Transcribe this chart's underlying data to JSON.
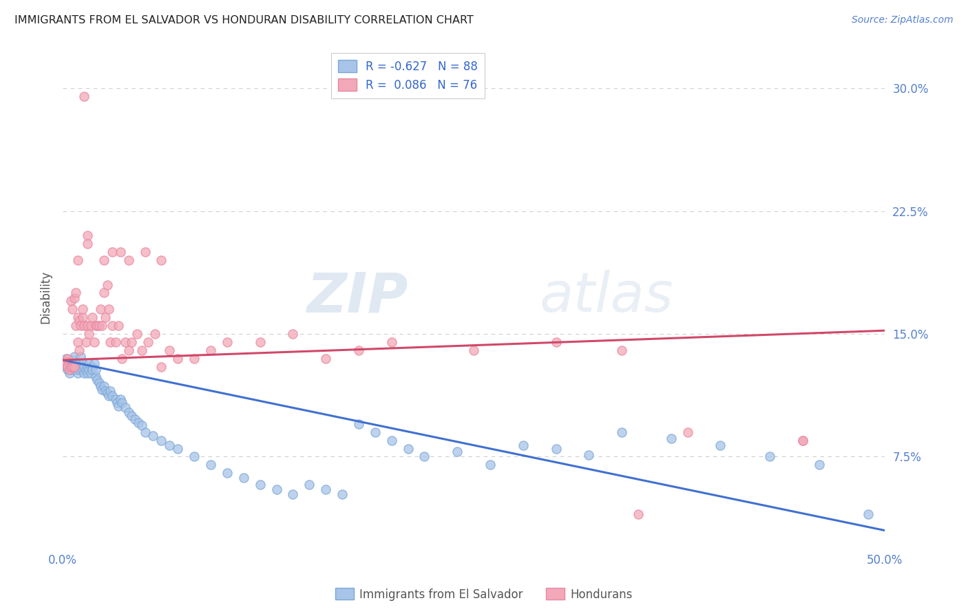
{
  "title": "IMMIGRANTS FROM EL SALVADOR VS HONDURAN DISABILITY CORRELATION CHART",
  "source": "Source: ZipAtlas.com",
  "ylabel_label": "Disability",
  "xlim": [
    0.0,
    0.5
  ],
  "ylim": [
    0.02,
    0.325
  ],
  "blue_R": "-0.627",
  "blue_N": "88",
  "pink_R": "0.086",
  "pink_N": "76",
  "blue_color": "#a8c4e8",
  "pink_color": "#f2a8b8",
  "blue_edge_color": "#7aa8d8",
  "pink_edge_color": "#e888a0",
  "blue_line_color": "#4070d0",
  "pink_line_color": "#d04868",
  "watermark_zip": "ZIP",
  "watermark_atlas": "atlas",
  "legend_label_blue": "Immigrants from El Salvador",
  "legend_label_pink": "Hondurans",
  "blue_scatter_x": [
    0.001,
    0.002,
    0.002,
    0.003,
    0.003,
    0.004,
    0.004,
    0.005,
    0.005,
    0.006,
    0.006,
    0.007,
    0.007,
    0.008,
    0.008,
    0.009,
    0.009,
    0.01,
    0.01,
    0.011,
    0.011,
    0.012,
    0.012,
    0.013,
    0.013,
    0.014,
    0.015,
    0.015,
    0.016,
    0.016,
    0.017,
    0.018,
    0.018,
    0.019,
    0.02,
    0.02,
    0.021,
    0.022,
    0.023,
    0.024,
    0.025,
    0.026,
    0.027,
    0.028,
    0.029,
    0.03,
    0.032,
    0.033,
    0.034,
    0.035,
    0.036,
    0.038,
    0.04,
    0.042,
    0.044,
    0.046,
    0.048,
    0.05,
    0.055,
    0.06,
    0.065,
    0.07,
    0.08,
    0.09,
    0.1,
    0.11,
    0.12,
    0.13,
    0.14,
    0.15,
    0.16,
    0.17,
    0.18,
    0.19,
    0.2,
    0.21,
    0.22,
    0.24,
    0.26,
    0.28,
    0.3,
    0.32,
    0.34,
    0.37,
    0.4,
    0.43,
    0.46,
    0.49
  ],
  "blue_scatter_y": [
    0.133,
    0.13,
    0.135,
    0.128,
    0.132,
    0.126,
    0.13,
    0.132,
    0.128,
    0.134,
    0.13,
    0.136,
    0.128,
    0.13,
    0.132,
    0.128,
    0.126,
    0.132,
    0.128,
    0.136,
    0.13,
    0.128,
    0.132,
    0.126,
    0.13,
    0.128,
    0.13,
    0.126,
    0.128,
    0.132,
    0.126,
    0.13,
    0.128,
    0.132,
    0.124,
    0.128,
    0.122,
    0.12,
    0.118,
    0.116,
    0.118,
    0.115,
    0.114,
    0.112,
    0.115,
    0.112,
    0.11,
    0.108,
    0.106,
    0.11,
    0.108,
    0.105,
    0.102,
    0.1,
    0.098,
    0.096,
    0.094,
    0.09,
    0.088,
    0.085,
    0.082,
    0.08,
    0.075,
    0.07,
    0.065,
    0.062,
    0.058,
    0.055,
    0.052,
    0.058,
    0.055,
    0.052,
    0.095,
    0.09,
    0.085,
    0.08,
    0.075,
    0.078,
    0.07,
    0.082,
    0.08,
    0.076,
    0.09,
    0.086,
    0.082,
    0.075,
    0.07,
    0.04
  ],
  "pink_scatter_x": [
    0.001,
    0.002,
    0.003,
    0.003,
    0.004,
    0.005,
    0.005,
    0.006,
    0.006,
    0.007,
    0.007,
    0.008,
    0.008,
    0.009,
    0.009,
    0.01,
    0.01,
    0.011,
    0.012,
    0.012,
    0.013,
    0.013,
    0.014,
    0.015,
    0.015,
    0.016,
    0.017,
    0.018,
    0.019,
    0.02,
    0.021,
    0.022,
    0.023,
    0.024,
    0.025,
    0.026,
    0.027,
    0.028,
    0.029,
    0.03,
    0.032,
    0.034,
    0.036,
    0.038,
    0.04,
    0.042,
    0.045,
    0.048,
    0.052,
    0.056,
    0.06,
    0.065,
    0.07,
    0.08,
    0.09,
    0.1,
    0.12,
    0.14,
    0.16,
    0.18,
    0.2,
    0.25,
    0.3,
    0.34,
    0.38,
    0.45,
    0.009,
    0.015,
    0.025,
    0.03,
    0.035,
    0.04,
    0.05,
    0.06,
    0.35,
    0.45
  ],
  "pink_scatter_y": [
    0.132,
    0.133,
    0.13,
    0.135,
    0.128,
    0.13,
    0.17,
    0.165,
    0.13,
    0.172,
    0.13,
    0.155,
    0.175,
    0.145,
    0.16,
    0.158,
    0.14,
    0.155,
    0.16,
    0.165,
    0.155,
    0.295,
    0.145,
    0.155,
    0.21,
    0.15,
    0.155,
    0.16,
    0.145,
    0.155,
    0.155,
    0.155,
    0.165,
    0.155,
    0.175,
    0.16,
    0.18,
    0.165,
    0.145,
    0.155,
    0.145,
    0.155,
    0.135,
    0.145,
    0.14,
    0.145,
    0.15,
    0.14,
    0.145,
    0.15,
    0.13,
    0.14,
    0.135,
    0.135,
    0.14,
    0.145,
    0.145,
    0.15,
    0.135,
    0.14,
    0.145,
    0.14,
    0.145,
    0.14,
    0.09,
    0.085,
    0.195,
    0.205,
    0.195,
    0.2,
    0.2,
    0.195,
    0.2,
    0.195,
    0.04,
    0.085
  ],
  "blue_line_y_start": 0.134,
  "blue_line_y_end": 0.03,
  "pink_line_y_start": 0.134,
  "pink_line_y_end": 0.152,
  "grid_color": "#d0d0d0",
  "bg_color": "#ffffff",
  "title_color": "#222222",
  "axis_label_color": "#555555",
  "tick_color": "#5580cc",
  "source_color": "#5580cc",
  "legend_text_color": "#3366cc"
}
